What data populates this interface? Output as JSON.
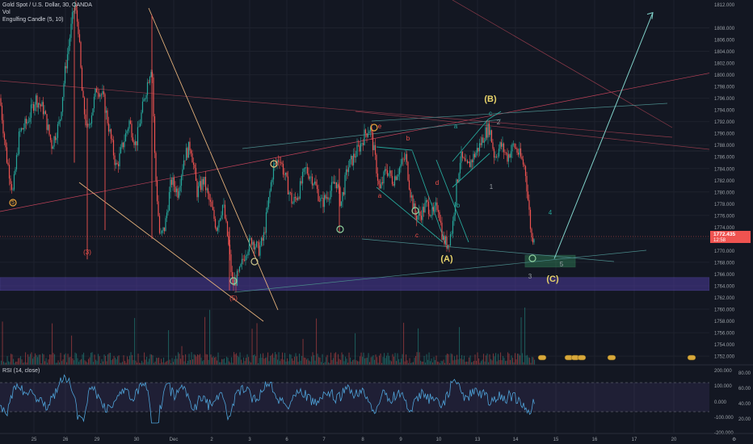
{
  "legend": {
    "symbol": "Gold Spot / U.S. Dollar, 30, OANDA",
    "vol": "Vol",
    "indicator": "Engulfing Candle (5, 10)"
  },
  "price_axis": {
    "ticks": [
      "1812.000",
      "1808.000",
      "1806.000",
      "1804.000",
      "1802.000",
      "1800.000",
      "1798.000",
      "1796.000",
      "1794.000",
      "1792.000",
      "1790.000",
      "1788.000",
      "1786.000",
      "1784.000",
      "1782.000",
      "1780.000",
      "1778.000",
      "1776.000",
      "1774.000",
      "1772.000",
      "1770.000",
      "1768.000",
      "1766.000",
      "1764.000",
      "1762.000",
      "1760.000",
      "1758.000",
      "1756.000",
      "1754.000",
      "1752.000"
    ],
    "ymin": 1750.5,
    "ymax": 1812.2,
    "last_price": "1772.435",
    "countdown": "12:58"
  },
  "rsi": {
    "label": "RSI (14, close)",
    "ticks_left": [
      "200.000",
      "100.000",
      "0.000",
      "-100.000",
      "-200.000"
    ],
    "ticks_right": [
      "80.00",
      "60.00",
      "40.00",
      "20.00"
    ]
  },
  "time_axis": {
    "labels": [
      "25",
      "26",
      "29",
      "30",
      "Dec",
      "2",
      "3",
      "6",
      "7",
      "8",
      "9",
      "10",
      "13",
      "14",
      "15",
      "16",
      "17",
      "20"
    ]
  },
  "wave_labels": [
    {
      "text": "(B)",
      "color": "#e8d36a"
    },
    {
      "text": "(A)",
      "color": "#e8d36a"
    },
    {
      "text": "(C)",
      "color": "#e8d36a"
    },
    {
      "text": "(3)",
      "color": "#f0504a"
    },
    {
      "text": "(5)",
      "color": "#f0504a"
    },
    {
      "text": "5",
      "color": "#e8a23a"
    },
    {
      "text": "a",
      "color": "#f0504a"
    },
    {
      "text": "b",
      "color": "#f0504a"
    },
    {
      "text": "c",
      "color": "#f0504a"
    },
    {
      "text": "d",
      "color": "#f0504a"
    },
    {
      "text": "e",
      "color": "#f0504a"
    },
    {
      "text": "a",
      "color": "#26a69a"
    },
    {
      "text": "b",
      "color": "#26a69a"
    },
    {
      "text": "c",
      "color": "#26a69a"
    },
    {
      "text": "1",
      "color": "#9aa0a6"
    },
    {
      "text": "2",
      "color": "#9aa0a6"
    },
    {
      "text": "3",
      "color": "#9aa0a6"
    },
    {
      "text": "4",
      "color": "#26a69a"
    },
    {
      "text": "5",
      "color": "#9aa0a6"
    }
  ],
  "colors": {
    "background": "#131722",
    "up": "#26a69a",
    "down": "#ef5350",
    "zone": "#4a3a9a",
    "target_box": "#3aa86a",
    "projection": "#7fd0c8",
    "last_price_tag": "#ef5350"
  },
  "chart_data": {
    "type": "candlestick",
    "title": "Gold Spot / U.S. Dollar, 30, OANDA",
    "ylim": [
      1750.5,
      1812.2
    ],
    "price_path": [
      {
        "x": 0,
        "y": 1796
      },
      {
        "x": 8,
        "y": 1786
      },
      {
        "x": 16,
        "y": 1780
      },
      {
        "x": 24,
        "y": 1790
      },
      {
        "x": 34,
        "y": 1792
      },
      {
        "x": 44,
        "y": 1796
      },
      {
        "x": 54,
        "y": 1794
      },
      {
        "x": 64,
        "y": 1788
      },
      {
        "x": 74,
        "y": 1792
      },
      {
        "x": 80,
        "y": 1800
      },
      {
        "x": 86,
        "y": 1806
      },
      {
        "x": 92,
        "y": 1812
      },
      {
        "x": 97,
        "y": 1808
      },
      {
        "x": 102,
        "y": 1796
      },
      {
        "x": 108,
        "y": 1790
      },
      {
        "x": 114,
        "y": 1794
      },
      {
        "x": 120,
        "y": 1798
      },
      {
        "x": 128,
        "y": 1796
      },
      {
        "x": 136,
        "y": 1790
      },
      {
        "x": 144,
        "y": 1784
      },
      {
        "x": 152,
        "y": 1788
      },
      {
        "x": 160,
        "y": 1792
      },
      {
        "x": 168,
        "y": 1788
      },
      {
        "x": 176,
        "y": 1794
      },
      {
        "x": 183,
        "y": 1799
      },
      {
        "x": 188,
        "y": 1802
      },
      {
        "x": 192,
        "y": 1784
      },
      {
        "x": 198,
        "y": 1772
      },
      {
        "x": 204,
        "y": 1774
      },
      {
        "x": 212,
        "y": 1782
      },
      {
        "x": 220,
        "y": 1780
      },
      {
        "x": 228,
        "y": 1786
      },
      {
        "x": 236,
        "y": 1788
      },
      {
        "x": 244,
        "y": 1780
      },
      {
        "x": 252,
        "y": 1782
      },
      {
        "x": 260,
        "y": 1778
      },
      {
        "x": 268,
        "y": 1774
      },
      {
        "x": 276,
        "y": 1778
      },
      {
        "x": 282,
        "y": 1772
      },
      {
        "x": 288,
        "y": 1764
      },
      {
        "x": 296,
        "y": 1766
      },
      {
        "x": 304,
        "y": 1770
      },
      {
        "x": 312,
        "y": 1772
      },
      {
        "x": 320,
        "y": 1770
      },
      {
        "x": 326,
        "y": 1772
      },
      {
        "x": 332,
        "y": 1778
      },
      {
        "x": 338,
        "y": 1784
      },
      {
        "x": 346,
        "y": 1786
      },
      {
        "x": 354,
        "y": 1782
      },
      {
        "x": 362,
        "y": 1778
      },
      {
        "x": 370,
        "y": 1780
      },
      {
        "x": 378,
        "y": 1784
      },
      {
        "x": 388,
        "y": 1782
      },
      {
        "x": 398,
        "y": 1778
      },
      {
        "x": 408,
        "y": 1780
      },
      {
        "x": 416,
        "y": 1782
      },
      {
        "x": 422,
        "y": 1778
      },
      {
        "x": 430,
        "y": 1784
      },
      {
        "x": 438,
        "y": 1786
      },
      {
        "x": 446,
        "y": 1788
      },
      {
        "x": 452,
        "y": 1790
      },
      {
        "x": 458,
        "y": 1791
      },
      {
        "x": 464,
        "y": 1786
      },
      {
        "x": 470,
        "y": 1780
      },
      {
        "x": 478,
        "y": 1784
      },
      {
        "x": 486,
        "y": 1782
      },
      {
        "x": 494,
        "y": 1784
      },
      {
        "x": 502,
        "y": 1786
      },
      {
        "x": 508,
        "y": 1780
      },
      {
        "x": 514,
        "y": 1776
      },
      {
        "x": 520,
        "y": 1776
      },
      {
        "x": 528,
        "y": 1778
      },
      {
        "x": 536,
        "y": 1776
      },
      {
        "x": 542,
        "y": 1778
      },
      {
        "x": 548,
        "y": 1772
      },
      {
        "x": 554,
        "y": 1771
      },
      {
        "x": 560,
        "y": 1774
      },
      {
        "x": 564,
        "y": 1780
      },
      {
        "x": 570,
        "y": 1786
      },
      {
        "x": 578,
        "y": 1784
      },
      {
        "x": 586,
        "y": 1786
      },
      {
        "x": 594,
        "y": 1788
      },
      {
        "x": 600,
        "y": 1790
      },
      {
        "x": 606,
        "y": 1791
      },
      {
        "x": 612,
        "y": 1786
      },
      {
        "x": 620,
        "y": 1788
      },
      {
        "x": 628,
        "y": 1786
      },
      {
        "x": 636,
        "y": 1788
      },
      {
        "x": 644,
        "y": 1786
      },
      {
        "x": 650,
        "y": 1784
      },
      {
        "x": 654,
        "y": 1778
      },
      {
        "x": 658,
        "y": 1772
      },
      {
        "x": 662,
        "y": 1773
      }
    ],
    "zone": {
      "from": 1763.2,
      "to": 1765.4
    },
    "target_box": {
      "x_from": 650,
      "x_to": 712,
      "low": 1767.2,
      "high": 1769.2
    },
    "projection": [
      {
        "x": 686,
        "y": 1768.6
      },
      {
        "x": 808,
        "y": 1810.6
      }
    ]
  }
}
